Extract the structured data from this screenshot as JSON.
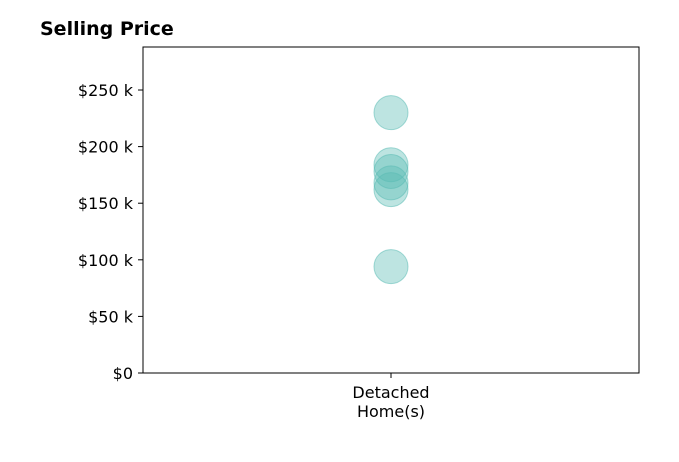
{
  "chart_data": {
    "type": "scatter",
    "title": "Selling Price",
    "xlabel": "",
    "ylabel": "",
    "categories": [
      [
        "Detached",
        "Home(s)"
      ]
    ],
    "series": [
      {
        "category_index": 0,
        "values": [
          230000,
          184000,
          178000,
          168000,
          162000,
          94000
        ]
      }
    ],
    "y_ticks": [
      0,
      50000,
      100000,
      150000,
      200000,
      250000
    ],
    "y_tick_labels": [
      "$0",
      "$50 k",
      "$100 k",
      "$150 k",
      "$200 k",
      "$250 k"
    ],
    "ylim": [
      0,
      288000
    ],
    "grid": false,
    "legend": "none",
    "marker_color": "#5bbcb4",
    "marker_opacity": 0.4
  }
}
